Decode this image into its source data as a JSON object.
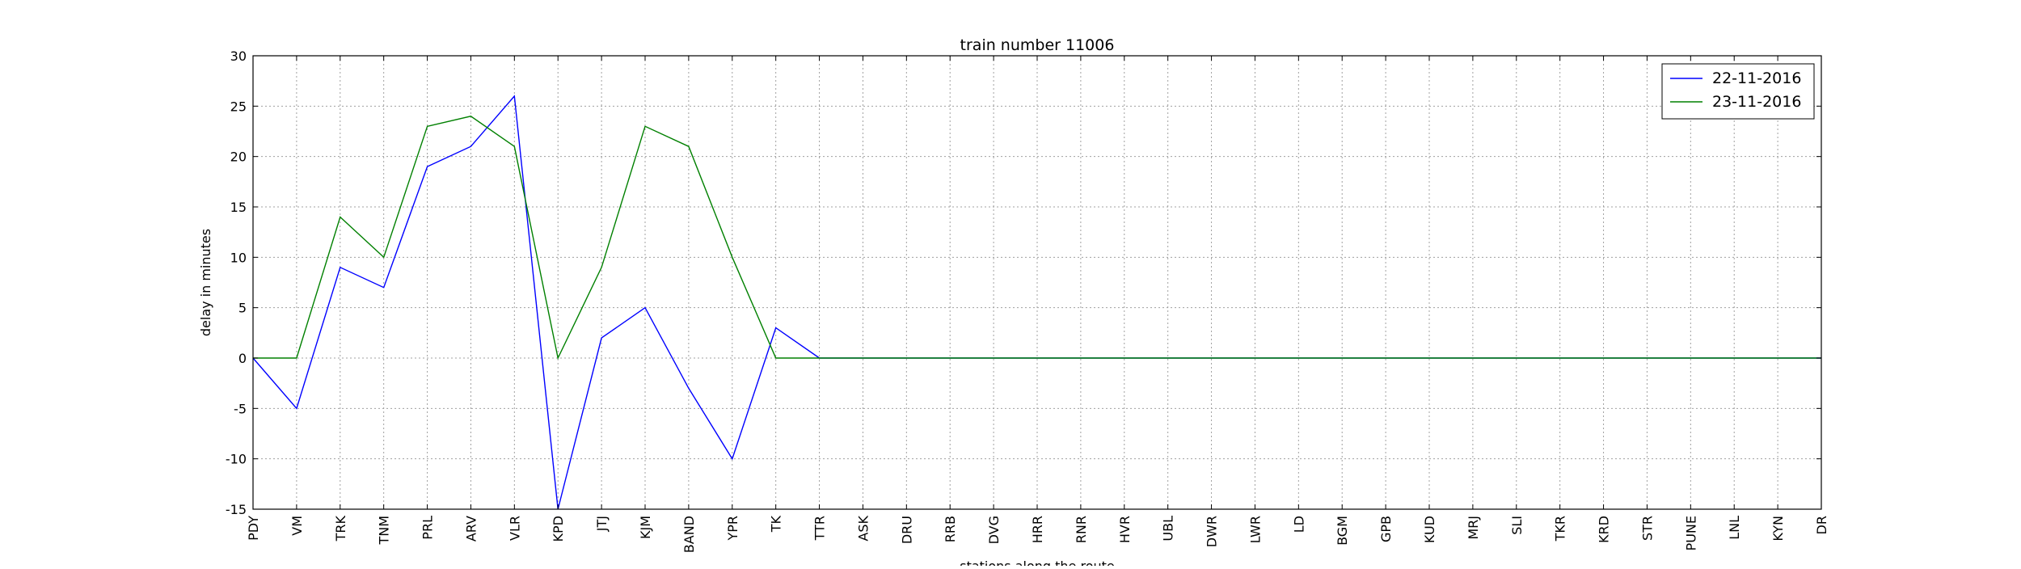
{
  "chart_data": {
    "type": "line",
    "title": "train number 11006",
    "xlabel": "stations along the route",
    "ylabel": "delay in minutes",
    "ylim": [
      -15,
      30
    ],
    "yticks": [
      -15,
      -10,
      -5,
      0,
      5,
      10,
      15,
      20,
      25,
      30
    ],
    "grid": true,
    "legend_position": "top-right",
    "categories": [
      "PDY",
      "VM",
      "TRK",
      "TNM",
      "PRL",
      "ARV",
      "VLR",
      "KPD",
      "JTJ",
      "KJM",
      "BAND",
      "YPR",
      "TK",
      "TTR",
      "ASK",
      "DRU",
      "RRB",
      "DVG",
      "HRR",
      "RNR",
      "HVR",
      "UBL",
      "DWR",
      "LWR",
      "LD",
      "BGM",
      "GPB",
      "KUD",
      "MRJ",
      "SLI",
      "TKR",
      "KRD",
      "STR",
      "PUNE",
      "LNL",
      "KYN",
      "DR"
    ],
    "series": [
      {
        "name": "22-11-2016",
        "color": "#0000ff",
        "values": [
          0,
          -5,
          9,
          7,
          19,
          21,
          26,
          -15,
          2,
          5,
          -3,
          -10,
          3,
          0,
          0,
          0,
          0,
          0,
          0,
          0,
          0,
          0,
          0,
          0,
          0,
          0,
          0,
          0,
          0,
          0,
          0,
          0,
          0,
          0,
          0,
          0,
          0
        ]
      },
      {
        "name": "23-11-2016",
        "color": "#008000",
        "values": [
          0,
          0,
          14,
          10,
          23,
          24,
          21,
          0,
          9,
          23,
          21,
          10,
          0,
          0,
          0,
          0,
          0,
          0,
          0,
          0,
          0,
          0,
          0,
          0,
          0,
          0,
          0,
          0,
          0,
          0,
          0,
          0,
          0,
          0,
          0,
          0,
          0
        ]
      }
    ]
  }
}
